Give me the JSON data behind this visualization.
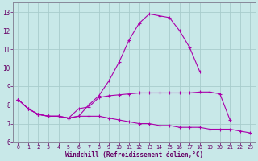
{
  "xlabel": "Windchill (Refroidissement éolien,°C)",
  "background_color": "#c8e8e8",
  "grid_color": "#a8cccc",
  "line_color": "#aa00aa",
  "x_hours": [
    0,
    1,
    2,
    3,
    4,
    5,
    6,
    7,
    8,
    9,
    10,
    11,
    12,
    13,
    14,
    15,
    16,
    17,
    18,
    19,
    20,
    21,
    22,
    23
  ],
  "line1_y": [
    8.3,
    7.8,
    7.5,
    7.4,
    7.4,
    7.3,
    7.4,
    8.0,
    8.5,
    9.3,
    10.3,
    11.5,
    12.4,
    12.9,
    12.8,
    12.7,
    12.0,
    11.1,
    9.8,
    null,
    null,
    null,
    null,
    null
  ],
  "line3_y": [
    8.3,
    7.8,
    7.5,
    7.4,
    7.4,
    7.3,
    7.8,
    7.9,
    8.4,
    8.5,
    8.55,
    8.6,
    8.65,
    8.65,
    8.65,
    8.65,
    8.65,
    8.65,
    8.7,
    8.7,
    8.6,
    7.2,
    null,
    null
  ],
  "line4_y": [
    8.3,
    7.8,
    7.5,
    7.4,
    7.4,
    7.3,
    7.4,
    7.4,
    7.4,
    7.3,
    7.2,
    7.1,
    7.0,
    7.0,
    6.9,
    6.9,
    6.8,
    6.8,
    6.8,
    6.7,
    6.7,
    6.7,
    6.6,
    6.5
  ],
  "ylim": [
    6.0,
    13.5
  ],
  "xlim": [
    -0.5,
    23.5
  ],
  "yticks": [
    6,
    7,
    8,
    9,
    10,
    11,
    12,
    13
  ],
  "xticks": [
    0,
    1,
    2,
    3,
    4,
    5,
    6,
    7,
    8,
    9,
    10,
    11,
    12,
    13,
    14,
    15,
    16,
    17,
    18,
    19,
    20,
    21,
    22,
    23
  ],
  "xlabel_fontsize": 5.5,
  "xlabel_color": "#660066",
  "tick_fontsize": 4.8,
  "ytick_fontsize": 5.5,
  "marker_size": 2.5,
  "line_width": 0.8
}
